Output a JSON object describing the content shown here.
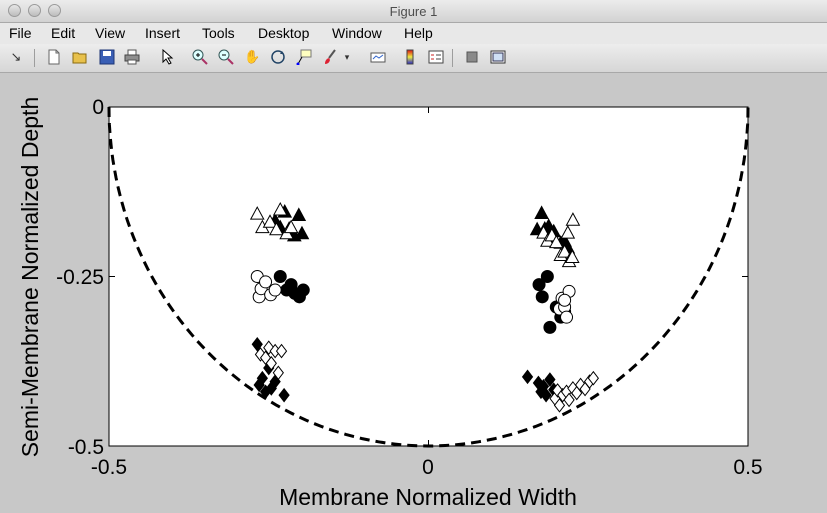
{
  "window": {
    "title": "Figure 1"
  },
  "menu": [
    "File",
    "Edit",
    "View",
    "Insert",
    "Tools",
    "Desktop",
    "Window",
    "Help"
  ],
  "toolbar_icons": [
    "arrow-icon",
    "new-figure-icon",
    "open-file-icon",
    "save-icon",
    "print-icon",
    "edit-plot-icon",
    "zoom-in-icon",
    "zoom-out-icon",
    "pan-icon",
    "rotate-3d-icon",
    "data-cursor-icon",
    "brush-icon",
    "link-plot-icon",
    "colorbar-icon",
    "legend-icon",
    "hide-plot-tools-icon",
    "show-plot-tools-icon"
  ],
  "chart_data": {
    "type": "scatter",
    "title": "",
    "xlabel": "Membrane Normalized Width",
    "ylabel": "Semi-Membrane Normalized Depth",
    "xlim": [
      -0.5,
      0.5
    ],
    "ylim": [
      -0.5,
      0
    ],
    "xticks": [
      "-0.5",
      "0",
      "0.5"
    ],
    "yticks": [
      "0",
      "-0.25",
      "-0.5"
    ],
    "grid": false,
    "legend": "none",
    "boundary": {
      "style": "dashed",
      "shape": "semicircle",
      "radius": 0.5,
      "color": "#000000"
    },
    "series": [
      {
        "marker": "triangle",
        "filled": true,
        "points": [
          [
            -0.24,
            -0.168
          ],
          [
            -0.232,
            -0.178
          ],
          [
            -0.225,
            -0.155
          ],
          [
            -0.218,
            -0.18
          ],
          [
            -0.21,
            -0.19
          ],
          [
            -0.203,
            -0.16
          ],
          [
            -0.198,
            -0.187
          ],
          [
            0.17,
            -0.181
          ],
          [
            0.177,
            -0.157
          ],
          [
            0.182,
            -0.18
          ],
          [
            0.188,
            -0.176
          ],
          [
            0.192,
            -0.195
          ],
          [
            0.196,
            -0.184
          ],
          [
            0.207,
            -0.201
          ],
          [
            0.213,
            -0.198
          ],
          [
            0.218,
            -0.208
          ]
        ]
      },
      {
        "marker": "triangle",
        "filled": false,
        "points": [
          [
            -0.268,
            -0.158
          ],
          [
            -0.26,
            -0.178
          ],
          [
            -0.248,
            -0.17
          ],
          [
            -0.238,
            -0.181
          ],
          [
            -0.232,
            -0.152
          ],
          [
            -0.222,
            -0.187
          ],
          [
            -0.215,
            -0.178
          ],
          [
            0.18,
            -0.186
          ],
          [
            0.186,
            -0.198
          ],
          [
            0.193,
            -0.19
          ],
          [
            0.2,
            -0.2
          ],
          [
            0.207,
            -0.219
          ],
          [
            0.213,
            -0.214
          ],
          [
            0.218,
            -0.186
          ],
          [
            0.22,
            -0.228
          ],
          [
            0.226,
            -0.167
          ],
          [
            0.225,
            -0.222
          ]
        ]
      },
      {
        "marker": "circle",
        "filled": true,
        "points": [
          [
            -0.232,
            -0.25
          ],
          [
            -0.222,
            -0.27
          ],
          [
            -0.215,
            -0.262
          ],
          [
            -0.209,
            -0.275
          ],
          [
            -0.202,
            -0.28
          ],
          [
            -0.196,
            -0.27
          ],
          [
            0.173,
            -0.262
          ],
          [
            0.178,
            -0.28
          ],
          [
            0.186,
            -0.25
          ],
          [
            0.19,
            -0.325
          ],
          [
            0.2,
            -0.295
          ],
          [
            0.207,
            -0.31
          ],
          [
            0.213,
            -0.302
          ]
        ]
      },
      {
        "marker": "circle",
        "filled": false,
        "points": [
          [
            -0.268,
            -0.25
          ],
          [
            -0.265,
            -0.28
          ],
          [
            -0.262,
            -0.268
          ],
          [
            -0.255,
            -0.258
          ],
          [
            -0.247,
            -0.277
          ],
          [
            -0.24,
            -0.27
          ],
          [
            0.205,
            -0.298
          ],
          [
            0.209,
            -0.282
          ],
          [
            0.213,
            -0.295
          ],
          [
            0.216,
            -0.31
          ],
          [
            0.22,
            -0.272
          ],
          [
            0.213,
            -0.285
          ]
        ]
      },
      {
        "marker": "diamond",
        "filled": true,
        "points": [
          [
            -0.268,
            -0.35
          ],
          [
            -0.265,
            -0.41
          ],
          [
            -0.26,
            -0.4
          ],
          [
            -0.255,
            -0.42
          ],
          [
            -0.25,
            -0.385
          ],
          [
            -0.246,
            -0.415
          ],
          [
            -0.24,
            -0.405
          ],
          [
            -0.226,
            -0.425
          ],
          [
            0.155,
            -0.398
          ],
          [
            0.172,
            -0.407
          ],
          [
            0.176,
            -0.42
          ],
          [
            0.18,
            -0.412
          ],
          [
            0.184,
            -0.425
          ],
          [
            0.19,
            -0.402
          ],
          [
            0.196,
            -0.417
          ]
        ]
      },
      {
        "marker": "diamond",
        "filled": false,
        "points": [
          [
            -0.263,
            -0.365
          ],
          [
            -0.255,
            -0.37
          ],
          [
            -0.25,
            -0.355
          ],
          [
            -0.246,
            -0.378
          ],
          [
            -0.24,
            -0.36
          ],
          [
            -0.235,
            -0.392
          ],
          [
            -0.23,
            -0.36
          ],
          [
            0.198,
            -0.43
          ],
          [
            0.202,
            -0.418
          ],
          [
            0.205,
            -0.44
          ],
          [
            0.21,
            -0.425
          ],
          [
            0.216,
            -0.42
          ],
          [
            0.22,
            -0.432
          ],
          [
            0.226,
            -0.415
          ],
          [
            0.232,
            -0.422
          ],
          [
            0.238,
            -0.41
          ],
          [
            0.245,
            -0.416
          ],
          [
            0.252,
            -0.405
          ],
          [
            0.258,
            -0.4
          ]
        ]
      }
    ]
  }
}
